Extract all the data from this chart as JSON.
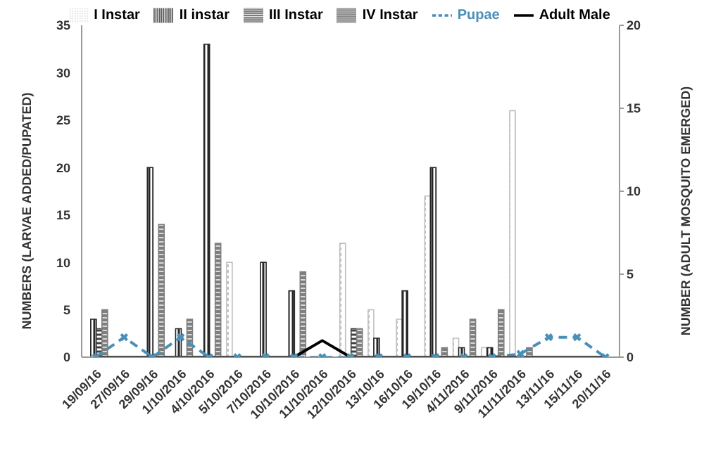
{
  "chart_data": {
    "type": "bar",
    "categories": [
      "19/09/16",
      "27/09/16",
      "29/09/16",
      "1/10/2016",
      "4/10/2016",
      "5/10/2016",
      "7/10/2016",
      "10/10/2016",
      "11/10/2016",
      "12/10/2016",
      "13/10/16",
      "16/10/16",
      "19/10/16",
      "4/11/2016",
      "9/11/2016",
      "11/11/2016",
      "13/11/16",
      "15/11/16",
      "20/11/16"
    ],
    "series": [
      {
        "name": "I Instar",
        "color": "#bfbfbf",
        "values": [
          0,
          0,
          0,
          0,
          0,
          10,
          0,
          0,
          0,
          12,
          5,
          4,
          17,
          2,
          1,
          26,
          0,
          0,
          0
        ]
      },
      {
        "name": "II instar",
        "color": "#262626",
        "values": [
          4,
          0,
          20,
          3,
          33,
          0,
          10,
          7,
          0,
          0,
          2,
          7,
          20,
          1,
          1,
          0,
          0,
          0,
          0
        ]
      },
      {
        "name": "III Instar",
        "color": "#404040",
        "values": [
          3,
          0,
          0,
          0,
          0,
          0,
          0,
          0,
          0,
          3,
          0,
          0,
          0,
          0,
          0,
          0,
          0,
          0,
          0
        ]
      },
      {
        "name": "IV Instar",
        "color": "#7f7f7f",
        "values": [
          5,
          0,
          14,
          4,
          12,
          0,
          0,
          9,
          0,
          3,
          0,
          0,
          1,
          4,
          5,
          1,
          0,
          0,
          0
        ]
      },
      {
        "name": "Pupae",
        "type": "line",
        "axis": "y2",
        "color": "#4a8fb8",
        "line_style": "dashed",
        "marker": "cross",
        "values": [
          0,
          1.2,
          0,
          1.2,
          0,
          0,
          0,
          0,
          0,
          0,
          0,
          0,
          0,
          0,
          0,
          0.2,
          1.2,
          1.2,
          0
        ]
      },
      {
        "name": "Adult Male",
        "type": "line",
        "axis": "y2",
        "color": "#000000",
        "line_style": "solid",
        "marker": "none",
        "values": [
          0,
          0,
          0,
          0,
          0,
          0,
          0,
          0,
          1,
          0,
          0,
          0,
          0,
          0,
          0,
          0,
          0,
          0,
          0
        ]
      }
    ],
    "ylabel": "NUMBERS (LARVAE ADDED/PUPATED)",
    "y2label": "NUMBER (ADULT MOSQUITO EMERGED)",
    "ylim": [
      0,
      35
    ],
    "yticks": [
      0,
      5,
      10,
      15,
      20,
      25,
      30,
      35
    ],
    "y2lim": [
      0,
      20
    ],
    "y2ticks": [
      0,
      5,
      10,
      15,
      20
    ],
    "grid": false,
    "legend": "top"
  }
}
